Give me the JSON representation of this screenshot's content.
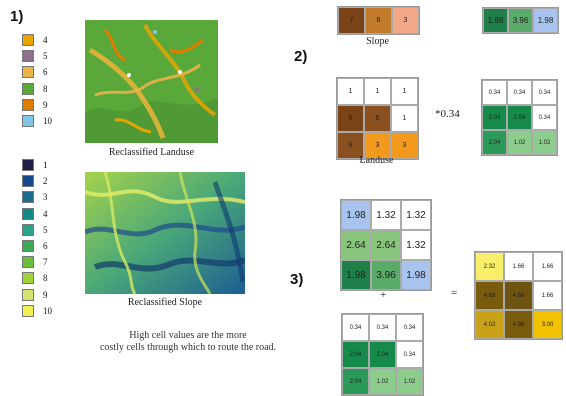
{
  "steps": {
    "one": "1)",
    "two": "2)",
    "three": "3)"
  },
  "legend_landuse": [
    {
      "label": "4",
      "color": "#e8a400"
    },
    {
      "label": "5",
      "color": "#8e6f8c"
    },
    {
      "label": "6",
      "color": "#eab24a"
    },
    {
      "label": "8",
      "color": "#5aa83a"
    },
    {
      "label": "9",
      "color": "#e07d00"
    },
    {
      "label": "10",
      "color": "#7fc6e8"
    }
  ],
  "legend_slope": [
    {
      "label": "1",
      "color": "#1f1f47"
    },
    {
      "label": "2",
      "color": "#174a8c"
    },
    {
      "label": "3",
      "color": "#1d6c8e"
    },
    {
      "label": "4",
      "color": "#138a8a"
    },
    {
      "label": "5",
      "color": "#2ba48a"
    },
    {
      "label": "6",
      "color": "#3ea854"
    },
    {
      "label": "7",
      "color": "#6bbf3c"
    },
    {
      "label": "8",
      "color": "#9fd23a"
    },
    {
      "label": "9",
      "color": "#d3e36e"
    },
    {
      "label": "10",
      "color": "#f2f055"
    }
  ],
  "captions": {
    "landuse_map": "Reclassified Landuse",
    "slope_map": "Reclassified Slope",
    "slope_grid": "Slope",
    "landuse_grid": "Landuse"
  },
  "note": {
    "line1": "High cell values are the more",
    "line2": "costly cells through which to route the road."
  },
  "operators": {
    "times": "*0.34",
    "plus": "+",
    "equals": "="
  },
  "grids": {
    "slope_top": {
      "values": [
        "7",
        "6",
        "3"
      ],
      "colors": [
        "#7a4418",
        "#c07a2a",
        "#f2a887"
      ]
    },
    "weighted_slope_top": {
      "values": [
        "1.98",
        "3.96",
        "1.98"
      ],
      "colors": [
        "#1e8048",
        "#5aaa6a",
        "#a8c4ee"
      ]
    },
    "landuse": {
      "values": [
        "1",
        "1",
        "1",
        "6",
        "6",
        "1",
        "6",
        "3",
        "3"
      ],
      "colors": [
        "#ffffff",
        "#ffffff",
        "#ffffff",
        "#7a4418",
        "#8a5020",
        "#ffffff",
        "#8a5020",
        "#f39a1c",
        "#f39a1c"
      ]
    },
    "weighted_landuse": {
      "values": [
        "0.34",
        "0.34",
        "0.34",
        "2.04",
        "2.04",
        "0.34",
        "2.04",
        "1.02",
        "1.02"
      ],
      "colors": [
        "#ffffff",
        "#ffffff",
        "#ffffff",
        "#158a4a",
        "#158a4a",
        "#ffffff",
        "#2b9a58",
        "#8ccc8c",
        "#8ccc8c"
      ]
    },
    "sum_a": {
      "values": [
        "1.98",
        "1.32",
        "1.32",
        "2.64",
        "2.64",
        "1.32",
        "1.98",
        "3.96",
        "1.98"
      ],
      "colors": [
        "#a8c4ee",
        "#ffffff",
        "#ffffff",
        "#88c47c",
        "#88c47c",
        "#ffffff",
        "#1e8048",
        "#5aaa6a",
        "#a8c4ee"
      ]
    },
    "sum_b": {
      "values": [
        "0.34",
        "0.34",
        "0.34",
        "2.04",
        "2.04",
        "0.34",
        "2.04",
        "1.02",
        "1.02"
      ],
      "colors": [
        "#ffffff",
        "#ffffff",
        "#ffffff",
        "#158a4a",
        "#158a4a",
        "#ffffff",
        "#2b9a58",
        "#8ccc8c",
        "#8ccc8c"
      ]
    },
    "result": {
      "values": [
        "2.32",
        "1.66",
        "1.66",
        "4.68",
        "4.68",
        "1.66",
        "4.02",
        "4.98",
        "3.00"
      ],
      "colors": [
        "#f8ee6a",
        "#ffffff",
        "#ffffff",
        "#7a5a0c",
        "#6e5410",
        "#ffffff",
        "#c9a21a",
        "#7a5a0c",
        "#f2c200"
      ]
    }
  }
}
